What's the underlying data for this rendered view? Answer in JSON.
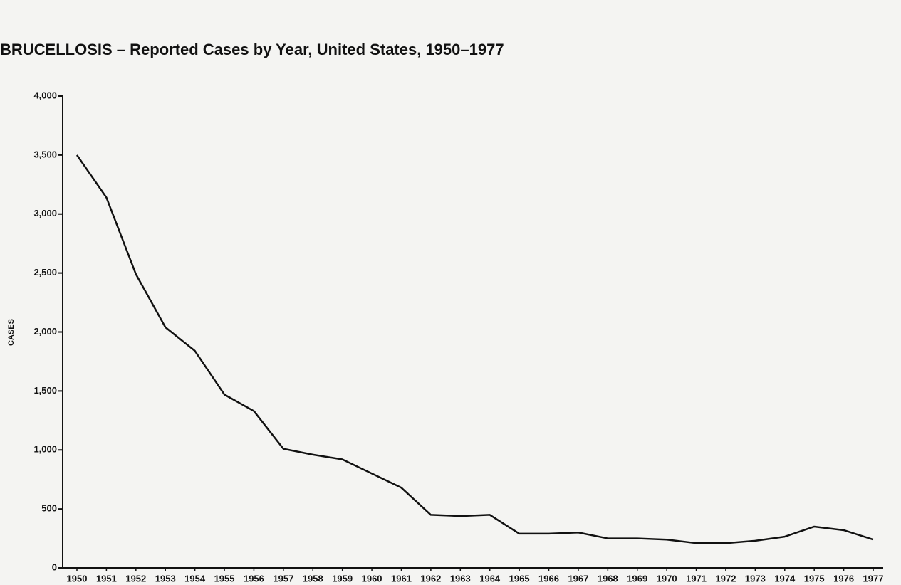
{
  "chart_data": {
    "type": "line",
    "title": "BRUCELLOSIS – Reported Cases by Year, United States, 1950–1977",
    "y_label": "CASES",
    "categories": [
      "1950",
      "1951",
      "1952",
      "1953",
      "1954",
      "1955",
      "1956",
      "1957",
      "1958",
      "1959",
      "1960",
      "1961",
      "1962",
      "1963",
      "1964",
      "1965",
      "1966",
      "1967",
      "1968",
      "1969",
      "1970",
      "1971",
      "1972",
      "1973",
      "1974",
      "1975",
      "1976",
      "1977"
    ],
    "series": [
      {
        "name": "Cases",
        "color": "#111111",
        "values": [
          3500,
          3140,
          2490,
          2040,
          1840,
          1470,
          1330,
          1010,
          960,
          920,
          800,
          680,
          450,
          440,
          450,
          290,
          290,
          300,
          250,
          250,
          240,
          210,
          210,
          230,
          265,
          350,
          320,
          240
        ]
      }
    ],
    "ylim": [
      0,
      4000
    ],
    "yticks": [
      0,
      500,
      {
        "value": 1000,
        "label": "1,000"
      },
      {
        "value": 1500,
        "label": "1,500"
      },
      {
        "value": 2000,
        "label": "2,000"
      },
      {
        "value": 2500,
        "label": "2,500"
      },
      {
        "value": 3000,
        "label": "3,000"
      },
      {
        "value": 3500,
        "label": "3,500"
      },
      {
        "value": 4000,
        "label": "4,000"
      }
    ],
    "grid": false
  }
}
